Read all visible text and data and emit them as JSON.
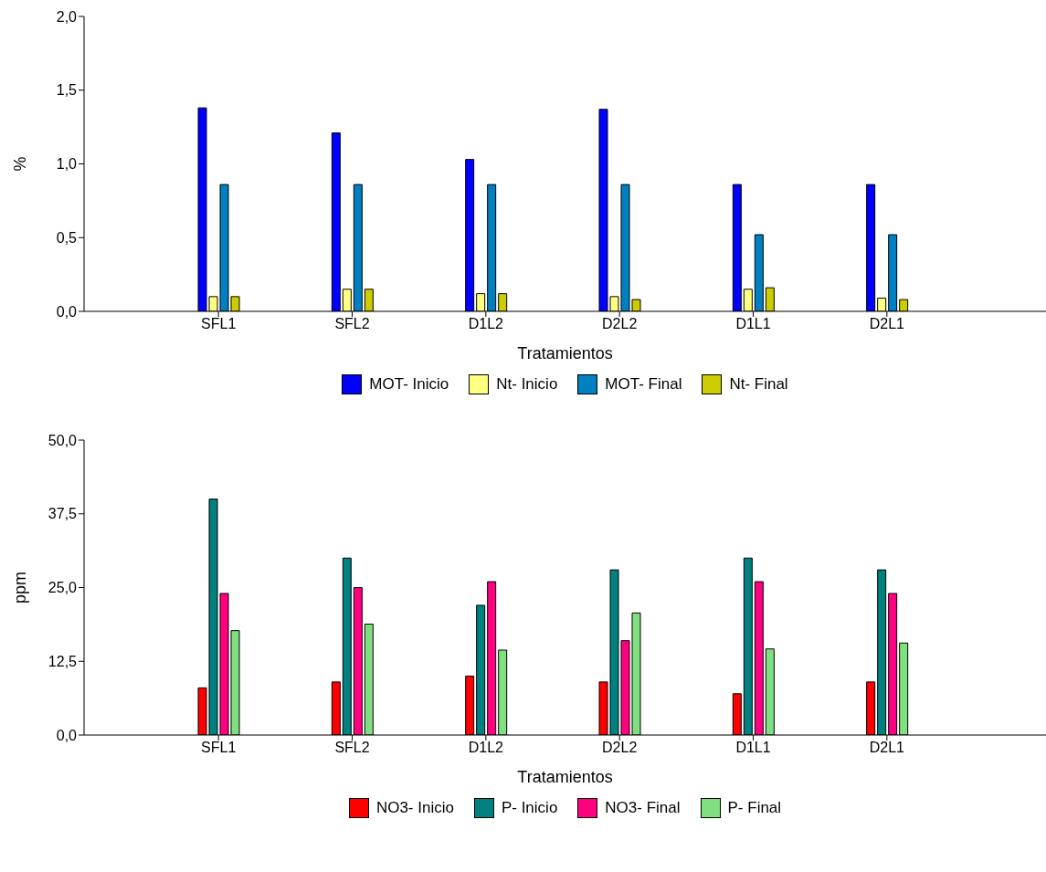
{
  "chart_data": [
    {
      "type": "bar",
      "xlabel": "Tratamientos",
      "ylabel": "%",
      "categories": [
        "SFL1",
        "SFL2",
        "D1L2",
        "D2L2",
        "D1L1",
        "D2L1"
      ],
      "ylim": [
        0,
        2
      ],
      "yticks": [
        {
          "value": 0,
          "label": "0,0"
        },
        {
          "value": 0.5,
          "label": "0,5"
        },
        {
          "value": 1,
          "label": "1,0"
        },
        {
          "value": 1.5,
          "label": "1,5"
        },
        {
          "value": 2,
          "label": "2,0"
        }
      ],
      "grid": false,
      "legend": "bottom",
      "series": [
        {
          "name": "MOT- Inicio",
          "color": "#0000ff",
          "values": [
            1.38,
            1.21,
            1.03,
            1.37,
            0.86,
            0.86
          ]
        },
        {
          "name": "Nt- Inicio",
          "color": "#ffff80",
          "values": [
            0.1,
            0.15,
            0.12,
            0.1,
            0.15,
            0.09
          ]
        },
        {
          "name": "MOT- Final",
          "color": "#0080c0",
          "values": [
            0.86,
            0.86,
            0.86,
            0.86,
            0.52,
            0.52
          ]
        },
        {
          "name": "Nt- Final",
          "color": "#cccc00",
          "values": [
            0.1,
            0.15,
            0.12,
            0.08,
            0.16,
            0.08
          ]
        }
      ]
    },
    {
      "type": "bar",
      "xlabel": "Tratamientos",
      "ylabel": "ppm",
      "categories": [
        "SFL1",
        "SFL2",
        "D1L2",
        "D2L2",
        "D1L1",
        "D2L1"
      ],
      "ylim": [
        0,
        50
      ],
      "yticks": [
        {
          "value": 0,
          "label": "0,0"
        },
        {
          "value": 12.5,
          "label": "12,5"
        },
        {
          "value": 25,
          "label": "25,0"
        },
        {
          "value": 37.5,
          "label": "37,5"
        },
        {
          "value": 50,
          "label": "50,0"
        }
      ],
      "grid": false,
      "legend": "bottom",
      "series": [
        {
          "name": "NO3- Inicio",
          "color": "#ff0000",
          "values": [
            8,
            9,
            10,
            9,
            7,
            9
          ]
        },
        {
          "name": "P- Inicio",
          "color": "#008080",
          "values": [
            40,
            30,
            22,
            28,
            30,
            28
          ]
        },
        {
          "name": "NO3- Final",
          "color": "#ff0080",
          "values": [
            24,
            25,
            26,
            16,
            26,
            24
          ]
        },
        {
          "name": "P- Final",
          "color": "#80e080",
          "values": [
            17.7,
            18.8,
            14.4,
            20.7,
            14.6,
            15.6
          ]
        }
      ]
    }
  ]
}
